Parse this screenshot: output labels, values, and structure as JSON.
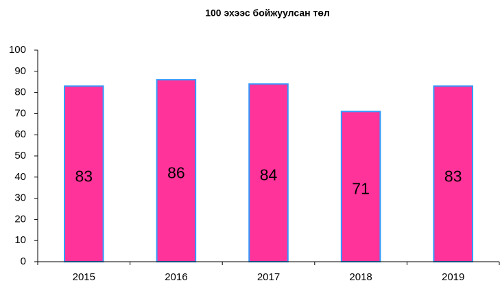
{
  "chart_data": {
    "type": "bar",
    "title": "100 эхээс бойжуулсан төл",
    "categories": [
      "2015",
      "2016",
      "2017",
      "2018",
      "2019"
    ],
    "values": [
      83,
      86,
      84,
      71,
      83
    ],
    "color": "#ff3399",
    "edge_color": "#3399ff",
    "ylim": [
      0,
      100
    ],
    "yticks": [
      0,
      10,
      20,
      30,
      40,
      50,
      60,
      70,
      80,
      90,
      100
    ],
    "grid": false
  }
}
